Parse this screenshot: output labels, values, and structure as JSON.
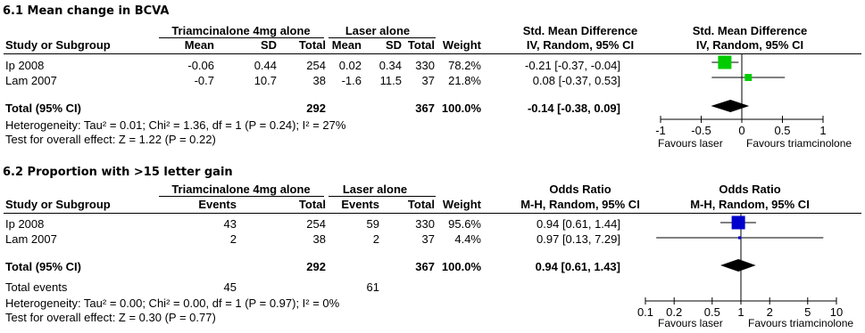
{
  "charts": [
    {
      "title": "6.1 Mean change in BCVA",
      "group_headers": {
        "treatment": "Triamcinalone 4mg alone",
        "control": "Laser alone"
      },
      "col_headers": [
        "Study or Subgroup",
        "Mean",
        "SD",
        "Total",
        "Mean",
        "SD",
        "Total",
        "Weight"
      ],
      "effect_header": {
        "line1": "Std. Mean Difference",
        "line2": "IV, Random, 95% CI"
      },
      "plot_header": {
        "line1": "Std. Mean Difference",
        "line2": "IV, Random, 95% CI"
      },
      "rows": [
        {
          "study": "Ip 2008",
          "t1": "-0.06",
          "t2": "0.44",
          "t3": "254",
          "c1": "0.02",
          "c2": "0.34",
          "c3": "330",
          "weight": "78.2%",
          "ci_text": "-0.21 [-0.37, -0.04]"
        },
        {
          "study": "Lam 2007",
          "t1": "-0.7",
          "t2": "10.7",
          "t3": "38",
          "c1": "-1.6",
          "c2": "11.5",
          "c3": "37",
          "weight": "21.8%",
          "ci_text": "0.08 [-0.37, 0.53]"
        }
      ],
      "total": {
        "label": "Total (95% CI)",
        "t_total": "292",
        "c_total": "367",
        "weight": "100.0%",
        "ci_text": "-0.14 [-0.38, 0.09]"
      },
      "heterogeneity": "Heterogeneity: Tau² = 0.01; Chi² = 1.36, df = 1 (P = 0.24); I² = 27%",
      "overall": "Test for overall effect: Z = 1.22 (P = 0.22)",
      "axis_ticks": [
        "-1",
        "-0.5",
        "0",
        "0.5",
        "1"
      ],
      "favours": {
        "left": "Favours laser",
        "right": "Favours triamcinolone"
      }
    },
    {
      "title": "6.2 Proportion with >15 letter gain",
      "group_headers": {
        "treatment": "Triamcinalone 4mg alone",
        "control": "Laser alone"
      },
      "col_headers": [
        "Study or Subgroup",
        "Events",
        "Total",
        "Events",
        "Total",
        "Weight"
      ],
      "effect_header": {
        "line1": "Odds Ratio",
        "line2": "M-H, Random, 95% CI"
      },
      "plot_header": {
        "line1": "Odds Ratio",
        "line2": "M-H, Random, 95% CI"
      },
      "rows": [
        {
          "study": "Ip 2008",
          "t1": "43",
          "t2": "254",
          "c1": "59",
          "c2": "330",
          "weight": "95.6%",
          "ci_text": "0.94 [0.61, 1.44]"
        },
        {
          "study": "Lam 2007",
          "t1": "2",
          "t2": "38",
          "c1": "2",
          "c2": "37",
          "weight": "4.4%",
          "ci_text": "0.97 [0.13, 7.29]"
        }
      ],
      "total": {
        "label": "Total (95% CI)",
        "t_total": "292",
        "c_total": "367",
        "weight": "100.0%",
        "ci_text": "0.94 [0.61, 1.43]"
      },
      "total_events": {
        "label": "Total events",
        "t": "45",
        "c": "61"
      },
      "heterogeneity": "Heterogeneity: Tau² = 0.00; Chi² = 0.00, df = 1 (P = 0.97); I² = 0%",
      "overall": "Test for overall effect: Z = 0.30 (P = 0.77)",
      "axis_ticks": [
        "0.1",
        "0.2",
        "0.5",
        "1",
        "2",
        "5",
        "10"
      ],
      "favours": {
        "left": "Favours laser",
        "right": "Favours triamcinolone"
      }
    }
  ],
  "colors": {
    "smd_marker": "#00cc00",
    "or_marker": "#0000cc",
    "diamond": "#000000"
  },
  "chart_data": [
    {
      "type": "forest",
      "scale": "linear",
      "xlim": [
        -1,
        1
      ],
      "studies": [
        {
          "name": "Ip 2008",
          "estimate": -0.21,
          "lower": -0.37,
          "upper": -0.04,
          "weight": 78.2
        },
        {
          "name": "Lam 2007",
          "estimate": 0.08,
          "lower": -0.37,
          "upper": 0.53,
          "weight": 21.8
        }
      ],
      "pooled": {
        "estimate": -0.14,
        "lower": -0.38,
        "upper": 0.09
      }
    },
    {
      "type": "forest",
      "scale": "log",
      "xlim": [
        0.1,
        10
      ],
      "studies": [
        {
          "name": "Ip 2008",
          "estimate": 0.94,
          "lower": 0.61,
          "upper": 1.44,
          "weight": 95.6
        },
        {
          "name": "Lam 2007",
          "estimate": 0.97,
          "lower": 0.13,
          "upper": 7.29,
          "weight": 4.4
        }
      ],
      "pooled": {
        "estimate": 0.94,
        "lower": 0.61,
        "upper": 1.43
      }
    }
  ]
}
